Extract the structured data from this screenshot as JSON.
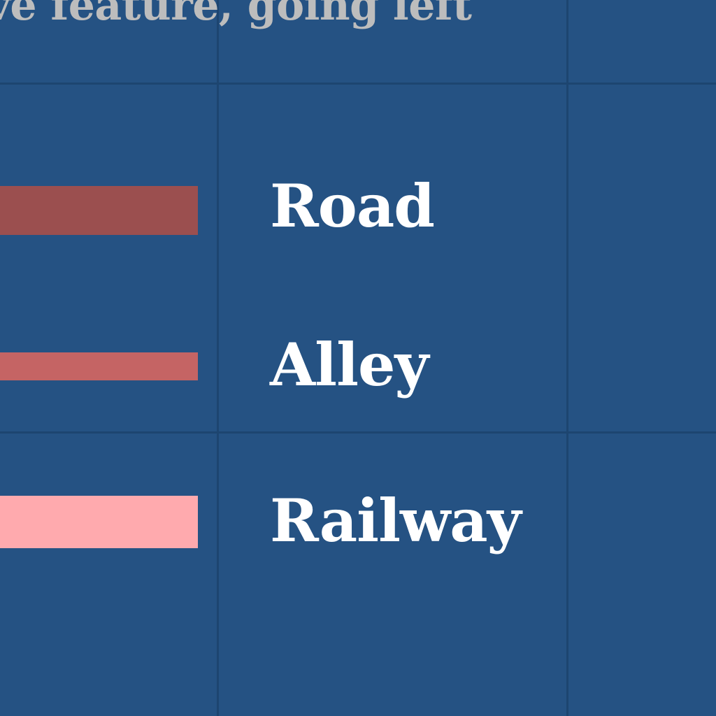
{
  "legend": {
    "header": "ve feature, going left",
    "items": [
      {
        "label": "Road",
        "color": "#9b4f4f"
      },
      {
        "label": "Alley",
        "color": "#c56464"
      },
      {
        "label": "Railway",
        "color": "#ffaaae"
      }
    ]
  },
  "colors": {
    "background": "#255283",
    "gridline": "#1d4570",
    "header_text": "#bdbdbd",
    "label_text": "#ffffff"
  }
}
